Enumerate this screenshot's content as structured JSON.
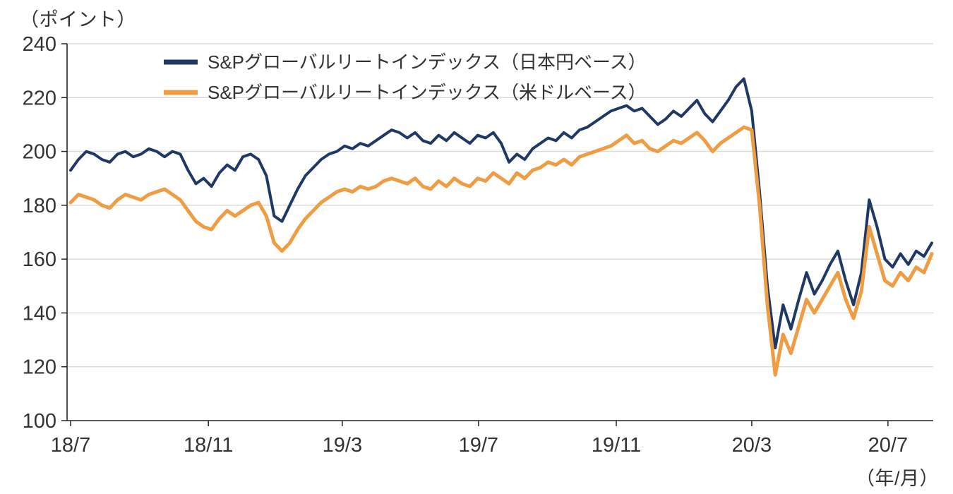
{
  "colors": {
    "axis": "#262626",
    "grid": "#d9d9d9",
    "text": "#333333",
    "background": "#ffffff"
  },
  "chart_data": {
    "type": "line",
    "title": "",
    "y_axis_label": "（ポイント）",
    "x_axis_label": "（年/月）",
    "ylim": [
      100,
      240
    ],
    "y_ticks": [
      100,
      120,
      140,
      160,
      180,
      200,
      220,
      240
    ],
    "grid": "horizontal",
    "legend_position": "inside-top-left",
    "x_range_weeks": [
      0,
      110
    ],
    "x_ticks": [
      {
        "label": "18/7",
        "week": 0
      },
      {
        "label": "18/11",
        "week": 17.6
      },
      {
        "label": "19/3",
        "week": 34.7
      },
      {
        "label": "19/7",
        "week": 52.1
      },
      {
        "label": "19/11",
        "week": 69.7
      },
      {
        "label": "20/3",
        "week": 87.0
      },
      {
        "label": "20/7",
        "week": 104.4
      }
    ],
    "series": [
      {
        "name": "S&Pグローバルリートインデックス（日本円ベース）",
        "color": "#1f3864",
        "stroke_width": 4,
        "values": [
          193,
          197,
          200,
          199,
          197,
          196,
          199,
          200,
          198,
          199,
          201,
          200,
          198,
          200,
          199,
          193,
          188,
          190,
          187,
          192,
          195,
          193,
          198,
          199,
          197,
          191,
          176,
          174,
          180,
          186,
          191,
          194,
          197,
          199,
          200,
          202,
          201,
          203,
          202,
          204,
          206,
          208,
          207,
          205,
          207,
          204,
          203,
          206,
          204,
          207,
          205,
          203,
          206,
          205,
          207,
          203,
          196,
          199,
          197,
          201,
          203,
          205,
          204,
          207,
          205,
          208,
          209,
          211,
          213,
          215,
          216,
          217,
          215,
          216,
          213,
          210,
          212,
          215,
          213,
          216,
          219,
          214,
          211,
          215,
          219,
          224,
          227,
          215,
          185,
          150,
          127,
          143,
          134,
          145,
          155,
          147,
          152,
          158,
          163,
          152,
          143,
          155,
          182,
          172,
          160,
          157,
          162,
          158,
          163,
          161,
          166
        ]
      },
      {
        "name": "S&Pグローバルリートインデックス（米ドルベース）",
        "color": "#ef9d45",
        "stroke_width": 5,
        "values": [
          181,
          184,
          183,
          182,
          180,
          179,
          182,
          184,
          183,
          182,
          184,
          185,
          186,
          184,
          182,
          178,
          174,
          172,
          171,
          175,
          178,
          176,
          178,
          180,
          181,
          176,
          166,
          163,
          166,
          171,
          175,
          178,
          181,
          183,
          185,
          186,
          185,
          187,
          186,
          187,
          189,
          190,
          189,
          188,
          190,
          187,
          186,
          189,
          187,
          190,
          188,
          187,
          190,
          189,
          192,
          190,
          188,
          192,
          190,
          193,
          194,
          196,
          195,
          197,
          195,
          198,
          199,
          200,
          201,
          202,
          204,
          206,
          203,
          204,
          201,
          200,
          202,
          204,
          203,
          205,
          207,
          204,
          200,
          203,
          205,
          207,
          209,
          208,
          180,
          143,
          117,
          132,
          125,
          135,
          145,
          140,
          145,
          150,
          155,
          145,
          138,
          148,
          172,
          162,
          152,
          150,
          155,
          152,
          157,
          155,
          162
        ]
      }
    ]
  }
}
